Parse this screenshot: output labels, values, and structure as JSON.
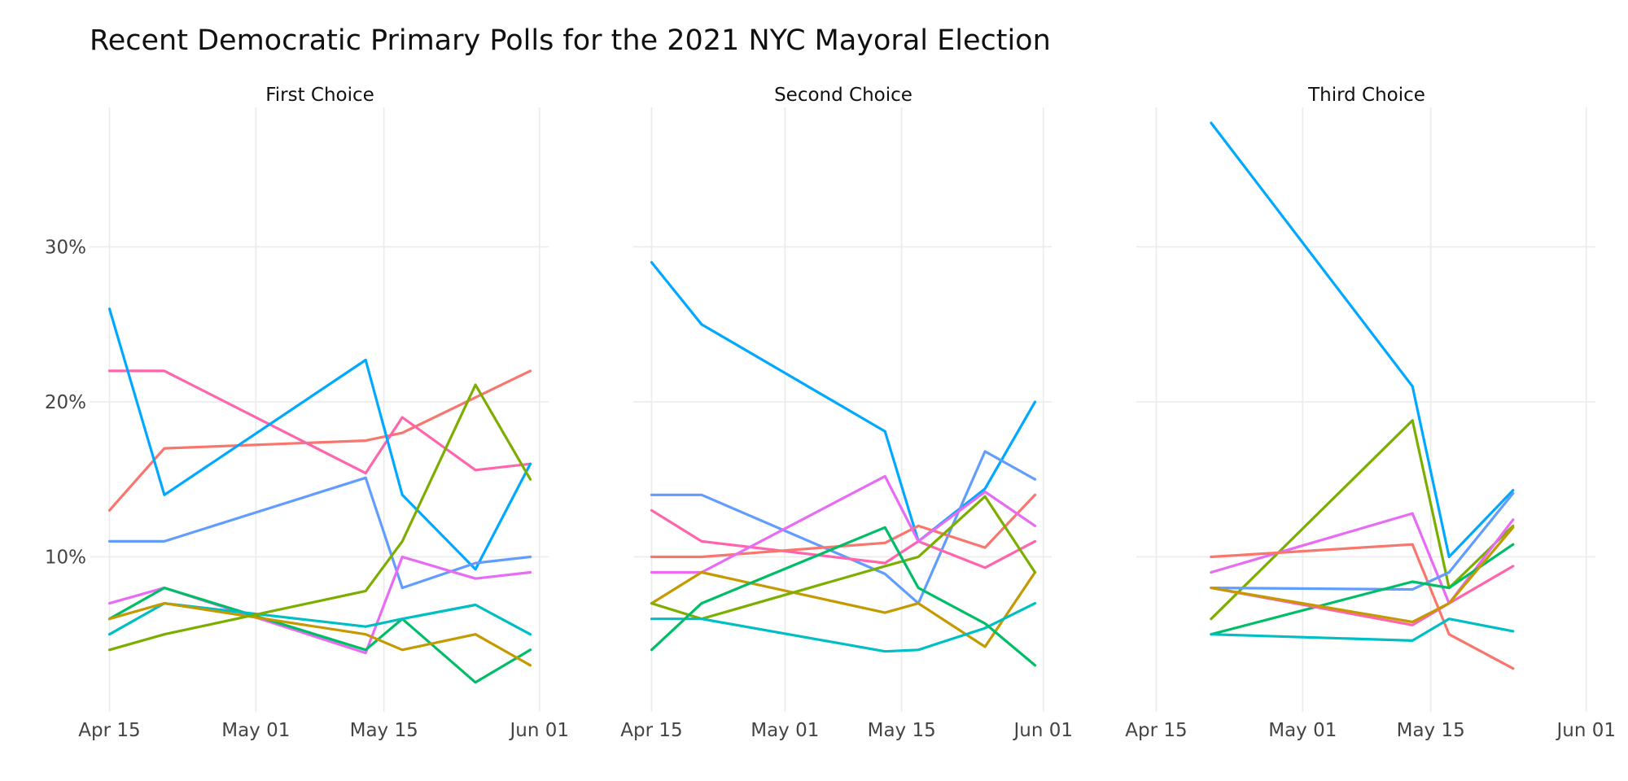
{
  "title": "Recent Democratic Primary Polls for the 2021 NYC Mayoral Election",
  "chart_data": {
    "type": "line",
    "layout": "small-multiples",
    "grid": true,
    "legend": "none",
    "y_unit": "%",
    "y_ticks": [
      {
        "value": 10,
        "label": "10%"
      },
      {
        "value": 20,
        "label": "20%"
      },
      {
        "value": 30,
        "label": "30%"
      }
    ],
    "x_ticks": [
      {
        "value": "2021-04-15",
        "label": "Apr 15"
      },
      {
        "value": "2021-05-01",
        "label": "May 01"
      },
      {
        "value": "2021-05-15",
        "label": "May 15"
      },
      {
        "value": "2021-06-01",
        "label": "Jun 01"
      }
    ],
    "panels": [
      {
        "title": "First Choice",
        "xlim": [
          "2021-04-13",
          "2021-06-02"
        ],
        "ylim": [
          0,
          39
        ],
        "series": [
          {
            "color": "#f8766d",
            "points": [
              [
                "2021-04-15",
                13
              ],
              [
                "2021-04-21",
                17
              ],
              [
                "2021-05-13",
                17.5
              ],
              [
                "2021-05-17",
                18
              ],
              [
                "2021-05-31",
                22
              ]
            ]
          },
          {
            "color": "#ff65ac",
            "points": [
              [
                "2021-04-15",
                22
              ],
              [
                "2021-04-21",
                22
              ],
              [
                "2021-05-13",
                15.4
              ],
              [
                "2021-05-17",
                19
              ],
              [
                "2021-05-25",
                15.6
              ],
              [
                "2021-05-31",
                16
              ]
            ]
          },
          {
            "color": "#00a9ff",
            "points": [
              [
                "2021-04-15",
                26
              ],
              [
                "2021-04-21",
                14
              ],
              [
                "2021-05-13",
                22.7
              ],
              [
                "2021-05-17",
                14
              ],
              [
                "2021-05-25",
                9.2
              ],
              [
                "2021-05-31",
                16
              ]
            ]
          },
          {
            "color": "#619cff",
            "points": [
              [
                "2021-04-15",
                11
              ],
              [
                "2021-04-21",
                11
              ],
              [
                "2021-05-13",
                15.1
              ],
              [
                "2021-05-17",
                8
              ],
              [
                "2021-05-25",
                9.6
              ],
              [
                "2021-05-31",
                10
              ]
            ]
          },
          {
            "color": "#e76bf3",
            "points": [
              [
                "2021-04-15",
                7
              ],
              [
                "2021-04-21",
                8
              ],
              [
                "2021-05-13",
                3.8
              ],
              [
                "2021-05-17",
                10
              ],
              [
                "2021-05-25",
                8.6
              ],
              [
                "2021-05-31",
                9
              ]
            ]
          },
          {
            "color": "#00be67",
            "points": [
              [
                "2021-04-15",
                6
              ],
              [
                "2021-04-21",
                8
              ],
              [
                "2021-05-13",
                4
              ],
              [
                "2021-05-17",
                6
              ],
              [
                "2021-05-25",
                1.9
              ],
              [
                "2021-05-31",
                4
              ]
            ]
          },
          {
            "color": "#00bfc4",
            "points": [
              [
                "2021-04-15",
                5
              ],
              [
                "2021-04-21",
                7
              ],
              [
                "2021-05-13",
                5.5
              ],
              [
                "2021-05-17",
                6
              ],
              [
                "2021-05-25",
                6.9
              ],
              [
                "2021-05-31",
                5
              ]
            ]
          },
          {
            "color": "#c49a00",
            "points": [
              [
                "2021-04-15",
                6
              ],
              [
                "2021-04-21",
                7
              ],
              [
                "2021-05-13",
                5
              ],
              [
                "2021-05-17",
                4
              ],
              [
                "2021-05-25",
                5
              ],
              [
                "2021-05-31",
                3
              ]
            ]
          },
          {
            "color": "#7cae00",
            "points": [
              [
                "2021-04-15",
                4
              ],
              [
                "2021-04-21",
                5
              ],
              [
                "2021-05-13",
                7.8
              ],
              [
                "2021-05-17",
                11
              ],
              [
                "2021-05-25",
                21.1
              ],
              [
                "2021-05-31",
                15
              ]
            ]
          }
        ]
      },
      {
        "title": "Second Choice",
        "xlim": [
          "2021-04-13",
          "2021-06-02"
        ],
        "ylim": [
          0,
          39
        ],
        "series": [
          {
            "color": "#00a9ff",
            "points": [
              [
                "2021-04-15",
                29
              ],
              [
                "2021-04-21",
                25
              ],
              [
                "2021-05-13",
                18.1
              ],
              [
                "2021-05-17",
                11
              ],
              [
                "2021-05-25",
                14.4
              ],
              [
                "2021-05-31",
                20
              ]
            ]
          },
          {
            "color": "#619cff",
            "points": [
              [
                "2021-04-15",
                14
              ],
              [
                "2021-04-21",
                14
              ],
              [
                "2021-05-13",
                8.9
              ],
              [
                "2021-05-17",
                7
              ],
              [
                "2021-05-25",
                16.8
              ],
              [
                "2021-05-31",
                15
              ]
            ]
          },
          {
            "color": "#ff65ac",
            "points": [
              [
                "2021-04-15",
                13
              ],
              [
                "2021-04-21",
                11
              ],
              [
                "2021-05-13",
                9.6
              ],
              [
                "2021-05-17",
                11
              ],
              [
                "2021-05-25",
                9.3
              ],
              [
                "2021-05-31",
                11
              ]
            ]
          },
          {
            "color": "#f8766d",
            "points": [
              [
                "2021-04-15",
                10
              ],
              [
                "2021-04-21",
                10
              ],
              [
                "2021-05-13",
                10.9
              ],
              [
                "2021-05-17",
                12
              ],
              [
                "2021-05-25",
                10.6
              ],
              [
                "2021-05-31",
                14
              ]
            ]
          },
          {
            "color": "#e76bf3",
            "points": [
              [
                "2021-04-15",
                9
              ],
              [
                "2021-04-21",
                9
              ],
              [
                "2021-05-13",
                15.2
              ],
              [
                "2021-05-17",
                11
              ],
              [
                "2021-05-25",
                14.2
              ],
              [
                "2021-05-31",
                12
              ]
            ]
          },
          {
            "color": "#c49a00",
            "points": [
              [
                "2021-04-15",
                7
              ],
              [
                "2021-04-21",
                9
              ],
              [
                "2021-05-13",
                6.4
              ],
              [
                "2021-05-17",
                7
              ],
              [
                "2021-05-25",
                4.2
              ],
              [
                "2021-05-31",
                9
              ]
            ]
          },
          {
            "color": "#7cae00",
            "points": [
              [
                "2021-04-15",
                7
              ],
              [
                "2021-04-21",
                6
              ],
              [
                "2021-05-13",
                9.4
              ],
              [
                "2021-05-17",
                10
              ],
              [
                "2021-05-25",
                13.9
              ],
              [
                "2021-05-31",
                9
              ]
            ]
          },
          {
            "color": "#00bfc4",
            "points": [
              [
                "2021-04-15",
                6
              ],
              [
                "2021-04-21",
                6
              ],
              [
                "2021-05-13",
                3.9
              ],
              [
                "2021-05-17",
                4
              ],
              [
                "2021-05-25",
                5.4
              ],
              [
                "2021-05-31",
                7
              ]
            ]
          },
          {
            "color": "#00be67",
            "points": [
              [
                "2021-04-15",
                4
              ],
              [
                "2021-04-21",
                7
              ],
              [
                "2021-05-13",
                11.9
              ],
              [
                "2021-05-17",
                8
              ],
              [
                "2021-05-25",
                5.7
              ],
              [
                "2021-05-31",
                3
              ]
            ]
          }
        ]
      },
      {
        "title": "Third Choice",
        "xlim": [
          "2021-04-13",
          "2021-06-02"
        ],
        "ylim": [
          0,
          39
        ],
        "series": [
          {
            "color": "#00a9ff",
            "points": [
              [
                "2021-04-21",
                38
              ],
              [
                "2021-05-13",
                21
              ],
              [
                "2021-05-17",
                10
              ],
              [
                "2021-05-24",
                14.3
              ]
            ]
          },
          {
            "color": "#7cae00",
            "points": [
              [
                "2021-04-21",
                6
              ],
              [
                "2021-05-13",
                18.8
              ],
              [
                "2021-05-17",
                8
              ],
              [
                "2021-05-24",
                12
              ]
            ]
          },
          {
            "color": "#e76bf3",
            "points": [
              [
                "2021-04-21",
                9
              ],
              [
                "2021-05-13",
                12.8
              ],
              [
                "2021-05-17",
                7
              ],
              [
                "2021-05-24",
                12.4
              ]
            ]
          },
          {
            "color": "#f8766d",
            "points": [
              [
                "2021-04-21",
                10
              ],
              [
                "2021-05-13",
                10.8
              ],
              [
                "2021-05-17",
                5
              ],
              [
                "2021-05-24",
                2.8
              ]
            ]
          },
          {
            "color": "#619cff",
            "points": [
              [
                "2021-04-21",
                8
              ],
              [
                "2021-05-13",
                7.9
              ],
              [
                "2021-05-17",
                9
              ],
              [
                "2021-05-24",
                14.1
              ]
            ]
          },
          {
            "color": "#00be67",
            "points": [
              [
                "2021-04-21",
                5
              ],
              [
                "2021-05-13",
                8.4
              ],
              [
                "2021-05-17",
                8
              ],
              [
                "2021-05-24",
                10.8
              ]
            ]
          },
          {
            "color": "#ff65ac",
            "points": [
              [
                "2021-04-21",
                8
              ],
              [
                "2021-05-13",
                5.6
              ],
              [
                "2021-05-17",
                7
              ],
              [
                "2021-05-24",
                9.4
              ]
            ]
          },
          {
            "color": "#c49a00",
            "points": [
              [
                "2021-04-21",
                8
              ],
              [
                "2021-05-13",
                5.8
              ],
              [
                "2021-05-17",
                7
              ],
              [
                "2021-05-24",
                11.9
              ]
            ]
          },
          {
            "color": "#00bfc4",
            "points": [
              [
                "2021-04-21",
                5
              ],
              [
                "2021-05-13",
                4.6
              ],
              [
                "2021-05-17",
                6
              ],
              [
                "2021-05-24",
                5.2
              ]
            ]
          }
        ]
      }
    ]
  }
}
